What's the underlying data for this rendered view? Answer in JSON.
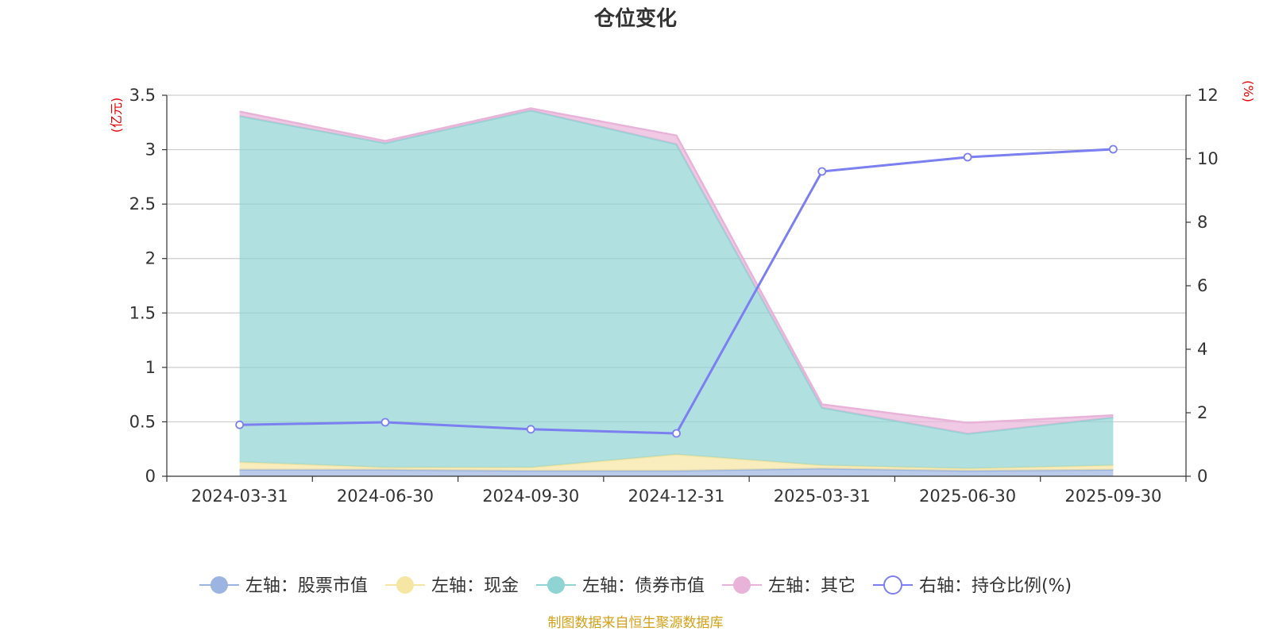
{
  "chart_data": {
    "type": "area",
    "title": "仓位变化",
    "categories": [
      "2024-03-31",
      "2024-06-30",
      "2024-09-30",
      "2024-12-31",
      "2025-03-31",
      "2025-06-30",
      "2025-09-30"
    ],
    "left_axis": {
      "unit": "(亿元)",
      "ylim": [
        0,
        3.5
      ],
      "ticks": [
        "0",
        "0.5",
        "1",
        "1.5",
        "2",
        "2.5",
        "3",
        "3.5"
      ]
    },
    "right_axis": {
      "unit": "(%)",
      "ylim": [
        0,
        12
      ],
      "ticks": [
        "0",
        "2",
        "4",
        "6",
        "8",
        "10",
        "12"
      ]
    },
    "grid": true,
    "legend_placement": "bottom",
    "stacked_series": [
      {
        "name": "左轴：股票市值",
        "color": "#9bb5e0",
        "values": [
          0.06,
          0.06,
          0.05,
          0.05,
          0.07,
          0.05,
          0.06
        ]
      },
      {
        "name": "左轴：现金",
        "color": "#f6e6a3",
        "values": [
          0.07,
          0.02,
          0.03,
          0.15,
          0.03,
          0.02,
          0.04
        ]
      },
      {
        "name": "左轴：债券市值",
        "color": "#8fd3d3",
        "values": [
          3.18,
          2.98,
          3.28,
          2.85,
          0.53,
          0.32,
          0.44
        ]
      },
      {
        "name": "左轴：其它",
        "color": "#e9b3d9",
        "values": [
          0.04,
          0.02,
          0.02,
          0.08,
          0.03,
          0.1,
          0.02
        ]
      }
    ],
    "line_series": {
      "name": "右轴：持仓比例(%)",
      "color": "#7b7ff0",
      "values": [
        1.62,
        1.7,
        1.48,
        1.35,
        9.6,
        10.05,
        10.3
      ]
    },
    "source_note": "制图数据来自恒生聚源数据库"
  }
}
